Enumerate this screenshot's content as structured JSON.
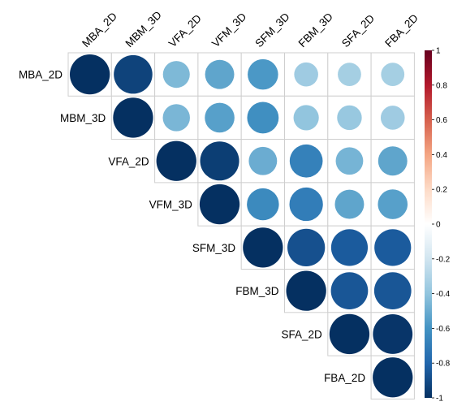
{
  "chart_data": {
    "type": "heatmap",
    "subtype": "correlation-upper-circle",
    "variables": [
      "MBA_2D",
      "MBM_3D",
      "VFA_2D",
      "VFM_3D",
      "SFM_3D",
      "FBM_3D",
      "SFA_2D",
      "FBA_2D"
    ],
    "matrix": [
      [
        1.0,
        0.93,
        0.45,
        0.53,
        0.58,
        0.36,
        0.34,
        0.34
      ],
      [
        0.93,
        1.0,
        0.46,
        0.55,
        0.62,
        0.4,
        0.38,
        0.36
      ],
      [
        0.45,
        0.46,
        1.0,
        0.95,
        0.5,
        0.68,
        0.47,
        0.53
      ],
      [
        0.53,
        0.55,
        0.95,
        1.0,
        0.64,
        0.7,
        0.53,
        0.55
      ],
      [
        0.58,
        0.62,
        0.5,
        0.64,
        1.0,
        0.88,
        0.84,
        0.84
      ],
      [
        0.36,
        0.4,
        0.68,
        0.7,
        0.88,
        1.0,
        0.86,
        0.86
      ],
      [
        0.34,
        0.38,
        0.47,
        0.53,
        0.84,
        0.86,
        1.0,
        0.98
      ],
      [
        0.34,
        0.36,
        0.53,
        0.55,
        0.84,
        0.86,
        0.98,
        1.0
      ]
    ],
    "colorbar": {
      "range": [
        -1,
        1
      ],
      "ticks": [
        "1",
        "0.8",
        "0.6",
        "0.4",
        "0.2",
        "0",
        "-0.2",
        "-0.4",
        "-0.6",
        "-0.8",
        "-1"
      ],
      "tick_values": [
        1,
        0.8,
        0.6,
        0.4,
        0.2,
        0,
        -0.2,
        -0.4,
        -0.6,
        -0.8,
        -1
      ],
      "colors": [
        "#67001F",
        "#B2182B",
        "#D6604D",
        "#F4A582",
        "#FDDBC7",
        "#FFFFFF",
        "#D1E5F0",
        "#92C5DE",
        "#4393C3",
        "#2166AC",
        "#053061"
      ]
    },
    "title": "",
    "xlabel": "",
    "ylabel": "",
    "grid": true,
    "legend": "right"
  }
}
